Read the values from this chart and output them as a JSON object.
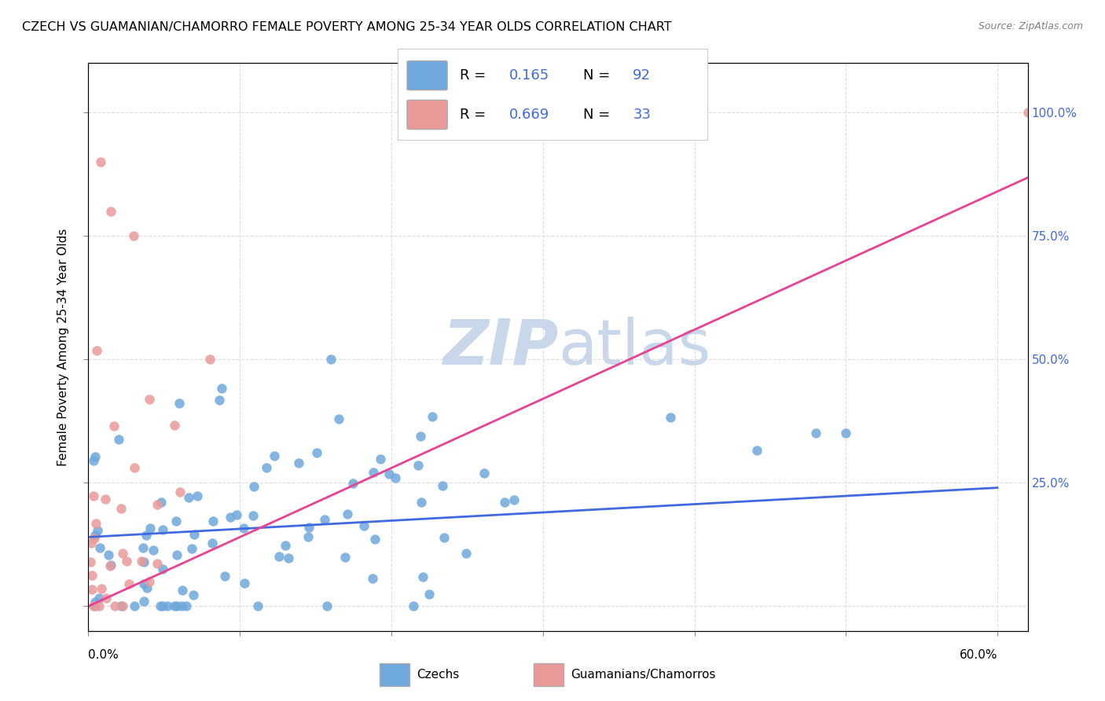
{
  "title": "CZECH VS GUAMANIAN/CHAMORRO FEMALE POVERTY AMONG 25-34 YEAR OLDS CORRELATION CHART",
  "source": "Source: ZipAtlas.com",
  "ylabel": "Female Poverty Among 25-34 Year Olds",
  "xlim": [
    0.0,
    0.62
  ],
  "ylim": [
    -0.05,
    1.1
  ],
  "yticks": [
    0.0,
    0.25,
    0.5,
    0.75,
    1.0
  ],
  "ytick_labels_right": [
    "",
    "25.0%",
    "50.0%",
    "75.0%",
    "100.0%"
  ],
  "czech_color": "#6fa8dc",
  "guam_color": "#ea9999",
  "czech_line_color": "#4169e1",
  "guam_line_color": "#e84393",
  "legend_R_czech": "0.165",
  "legend_N_czech": "92",
  "legend_R_guam": "0.669",
  "legend_N_guam": "33",
  "watermark_zip": "ZIP",
  "watermark_atlas": "atlas",
  "watermark_color": "#c8d8ea",
  "background_color": "#ffffff",
  "grid_color": "#dddddd",
  "accent_color": "#4169e1"
}
